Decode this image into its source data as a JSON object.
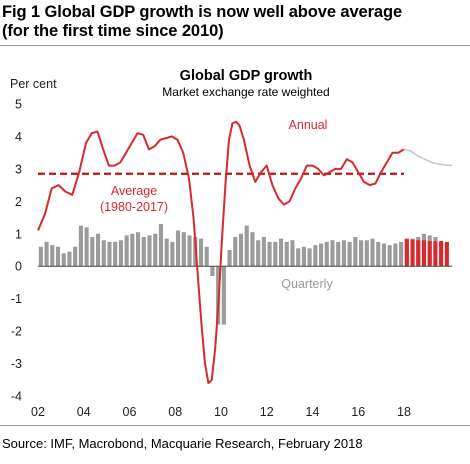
{
  "figure": {
    "title_line1": "Fig 1    Global GDP growth is now well above average",
    "title_line2": "(for the first time since 2010)",
    "source": "Source:  IMF, Macrobond, Macquarie Research, February 2018"
  },
  "colors": {
    "annual": "#d8292f",
    "forecast_line": "#c9c9c9",
    "quarterly": "#9b9b9b",
    "quarterly_forecast": "#d8292f",
    "average": "#c0141b"
  },
  "chart_data": {
    "type": "line",
    "title": "Global GDP growth",
    "subtitle": "Market exchange rate weighted",
    "ylabel": "Per cent",
    "xlabel": "",
    "ylim": [
      -4,
      5
    ],
    "xlim": [
      2002,
      2020.1
    ],
    "x_ticks": [
      2002,
      2004,
      2006,
      2008,
      2010,
      2012,
      2014,
      2016,
      2018
    ],
    "x_tick_labels": [
      "02",
      "04",
      "06",
      "08",
      "10",
      "12",
      "14",
      "16",
      "18"
    ],
    "y_ticks": [
      -4,
      -3,
      -2,
      -1,
      0,
      1,
      2,
      3,
      4,
      5
    ],
    "y_tick_labels": [
      "-4",
      "-3",
      "-2",
      "-1",
      "0",
      "1",
      "2",
      "3",
      "4",
      "5"
    ],
    "grid": false,
    "legend": "none",
    "annotations": {
      "annual": "Annual",
      "average_line1": "Average",
      "average_line2": "(1980-2017)",
      "quarterly": "Quarterly"
    },
    "average": {
      "name": "Average (1980-2017)",
      "value": 2.85
    },
    "annual": {
      "name": "Annual",
      "x": [
        2002.0,
        2002.3,
        2002.6,
        2002.9,
        2003.2,
        2003.5,
        2003.8,
        2004.1,
        2004.35,
        2004.6,
        2004.85,
        2005.1,
        2005.35,
        2005.6,
        2005.85,
        2006.1,
        2006.35,
        2006.6,
        2006.85,
        2007.1,
        2007.35,
        2007.6,
        2007.85,
        2008.1,
        2008.35,
        2008.6,
        2008.8,
        2009.0,
        2009.15,
        2009.3,
        2009.45,
        2009.6,
        2009.75,
        2009.9,
        2010.05,
        2010.2,
        2010.35,
        2010.5,
        2010.65,
        2010.8,
        2011.0,
        2011.25,
        2011.5,
        2011.75,
        2012.0,
        2012.25,
        2012.5,
        2012.75,
        2013.0,
        2013.25,
        2013.5,
        2013.75,
        2014.0,
        2014.25,
        2014.5,
        2014.75,
        2015.0,
        2015.25,
        2015.5,
        2015.75,
        2016.0,
        2016.25,
        2016.5,
        2016.75,
        2017.0,
        2017.25,
        2017.5,
        2017.75,
        2018.0
      ],
      "y": [
        1.1,
        1.6,
        2.4,
        2.5,
        2.3,
        2.2,
        2.9,
        3.8,
        4.1,
        4.15,
        3.6,
        3.1,
        3.1,
        3.2,
        3.5,
        3.8,
        4.1,
        4.05,
        3.6,
        3.7,
        3.9,
        3.95,
        4.0,
        3.9,
        3.5,
        2.7,
        1.5,
        -0.4,
        -1.8,
        -3.0,
        -3.6,
        -3.5,
        -2.5,
        -1.0,
        0.9,
        2.6,
        3.9,
        4.4,
        4.45,
        4.35,
        3.9,
        3.1,
        2.6,
        2.9,
        3.1,
        2.5,
        2.1,
        1.9,
        2.0,
        2.4,
        2.7,
        3.1,
        3.1,
        3.0,
        2.8,
        2.9,
        3.0,
        3.0,
        3.3,
        3.2,
        2.9,
        2.6,
        2.5,
        2.55,
        2.9,
        3.2,
        3.5,
        3.5,
        3.6
      ]
    },
    "annual_forecast": {
      "name": "Annual forecast",
      "x": [
        2018.0,
        2018.3,
        2018.6,
        2018.9,
        2019.2,
        2019.5,
        2019.8,
        2020.1
      ],
      "y": [
        3.6,
        3.55,
        3.4,
        3.3,
        3.2,
        3.15,
        3.12,
        3.1
      ]
    },
    "quarterly": {
      "name": "Quarterly",
      "x_start": 2002.0,
      "step": 0.25,
      "values": [
        0.6,
        0.75,
        0.65,
        0.6,
        0.4,
        0.45,
        0.6,
        1.25,
        1.2,
        0.9,
        1.0,
        0.8,
        0.75,
        0.75,
        0.8,
        0.95,
        1.0,
        1.05,
        0.9,
        0.95,
        1.0,
        1.3,
        0.85,
        0.75,
        1.1,
        1.05,
        0.95,
        0.9,
        0.85,
        0.6,
        -0.3,
        -1.8,
        -1.8,
        0.5,
        0.9,
        1.0,
        1.25,
        1.05,
        0.8,
        0.9,
        0.75,
        0.75,
        0.85,
        0.75,
        0.8,
        0.55,
        0.6,
        0.55,
        0.65,
        0.7,
        0.75,
        0.8,
        0.75,
        0.8,
        0.75,
        0.9,
        0.8,
        0.8,
        0.85,
        0.75,
        0.7,
        0.65,
        0.7,
        0.75,
        0.8,
        0.85,
        0.9,
        1.0,
        0.95,
        0.9
      ]
    },
    "quarterly_forecast": {
      "name": "Quarterly forecast",
      "x_start": 2018.0,
      "step": 0.25,
      "values": [
        0.85,
        0.82,
        0.8,
        0.8,
        0.78,
        0.77,
        0.78,
        0.75
      ]
    }
  }
}
